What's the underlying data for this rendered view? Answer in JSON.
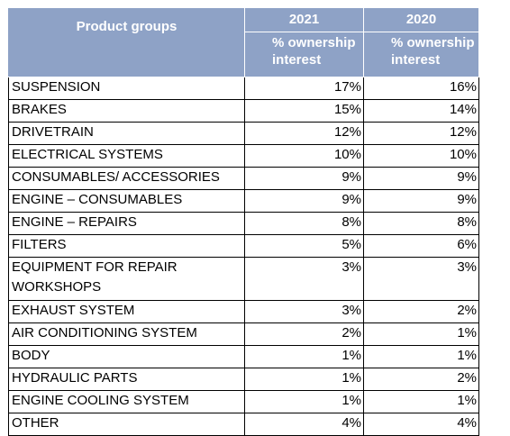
{
  "table": {
    "header": {
      "product_groups": "Product groups",
      "year_2021": "2021",
      "year_2020": "2020",
      "metric_2021": "% ownership interest",
      "metric_2020": "% ownership interest"
    },
    "rows": [
      {
        "label": "SUSPENSION",
        "v2021": "17%",
        "v2020": "16%"
      },
      {
        "label": "BRAKES",
        "v2021": "15%",
        "v2020": "14%"
      },
      {
        "label": "DRIVETRAIN",
        "v2021": "12%",
        "v2020": "12%"
      },
      {
        "label": "ELECTRICAL SYSTEMS",
        "v2021": "10%",
        "v2020": "10%"
      },
      {
        "label": "CONSUMABLES/ ACCESSORIES",
        "v2021": "9%",
        "v2020": "9%"
      },
      {
        "label": "ENGINE – CONSUMABLES",
        "v2021": "9%",
        "v2020": "9%"
      },
      {
        "label": "ENGINE – REPAIRS",
        "v2021": "8%",
        "v2020": "8%"
      },
      {
        "label": "FILTERS",
        "v2021": "5%",
        "v2020": "6%"
      },
      {
        "label": "EQUIPMENT FOR REPAIR WORKSHOPS",
        "v2021": "3%",
        "v2020": "3%"
      },
      {
        "label": "EXHAUST SYSTEM",
        "v2021": "3%",
        "v2020": "2%"
      },
      {
        "label": "AIR CONDITIONING SYSTEM",
        "v2021": "2%",
        "v2020": "1%"
      },
      {
        "label": "BODY",
        "v2021": "1%",
        "v2020": "1%"
      },
      {
        "label": "HYDRAULIC PARTS",
        "v2021": "1%",
        "v2020": "2%"
      },
      {
        "label": "ENGINE COOLING SYSTEM",
        "v2021": "1%",
        "v2020": "1%"
      },
      {
        "label": "OTHER",
        "v2021": "4%",
        "v2020": "4%"
      }
    ]
  }
}
